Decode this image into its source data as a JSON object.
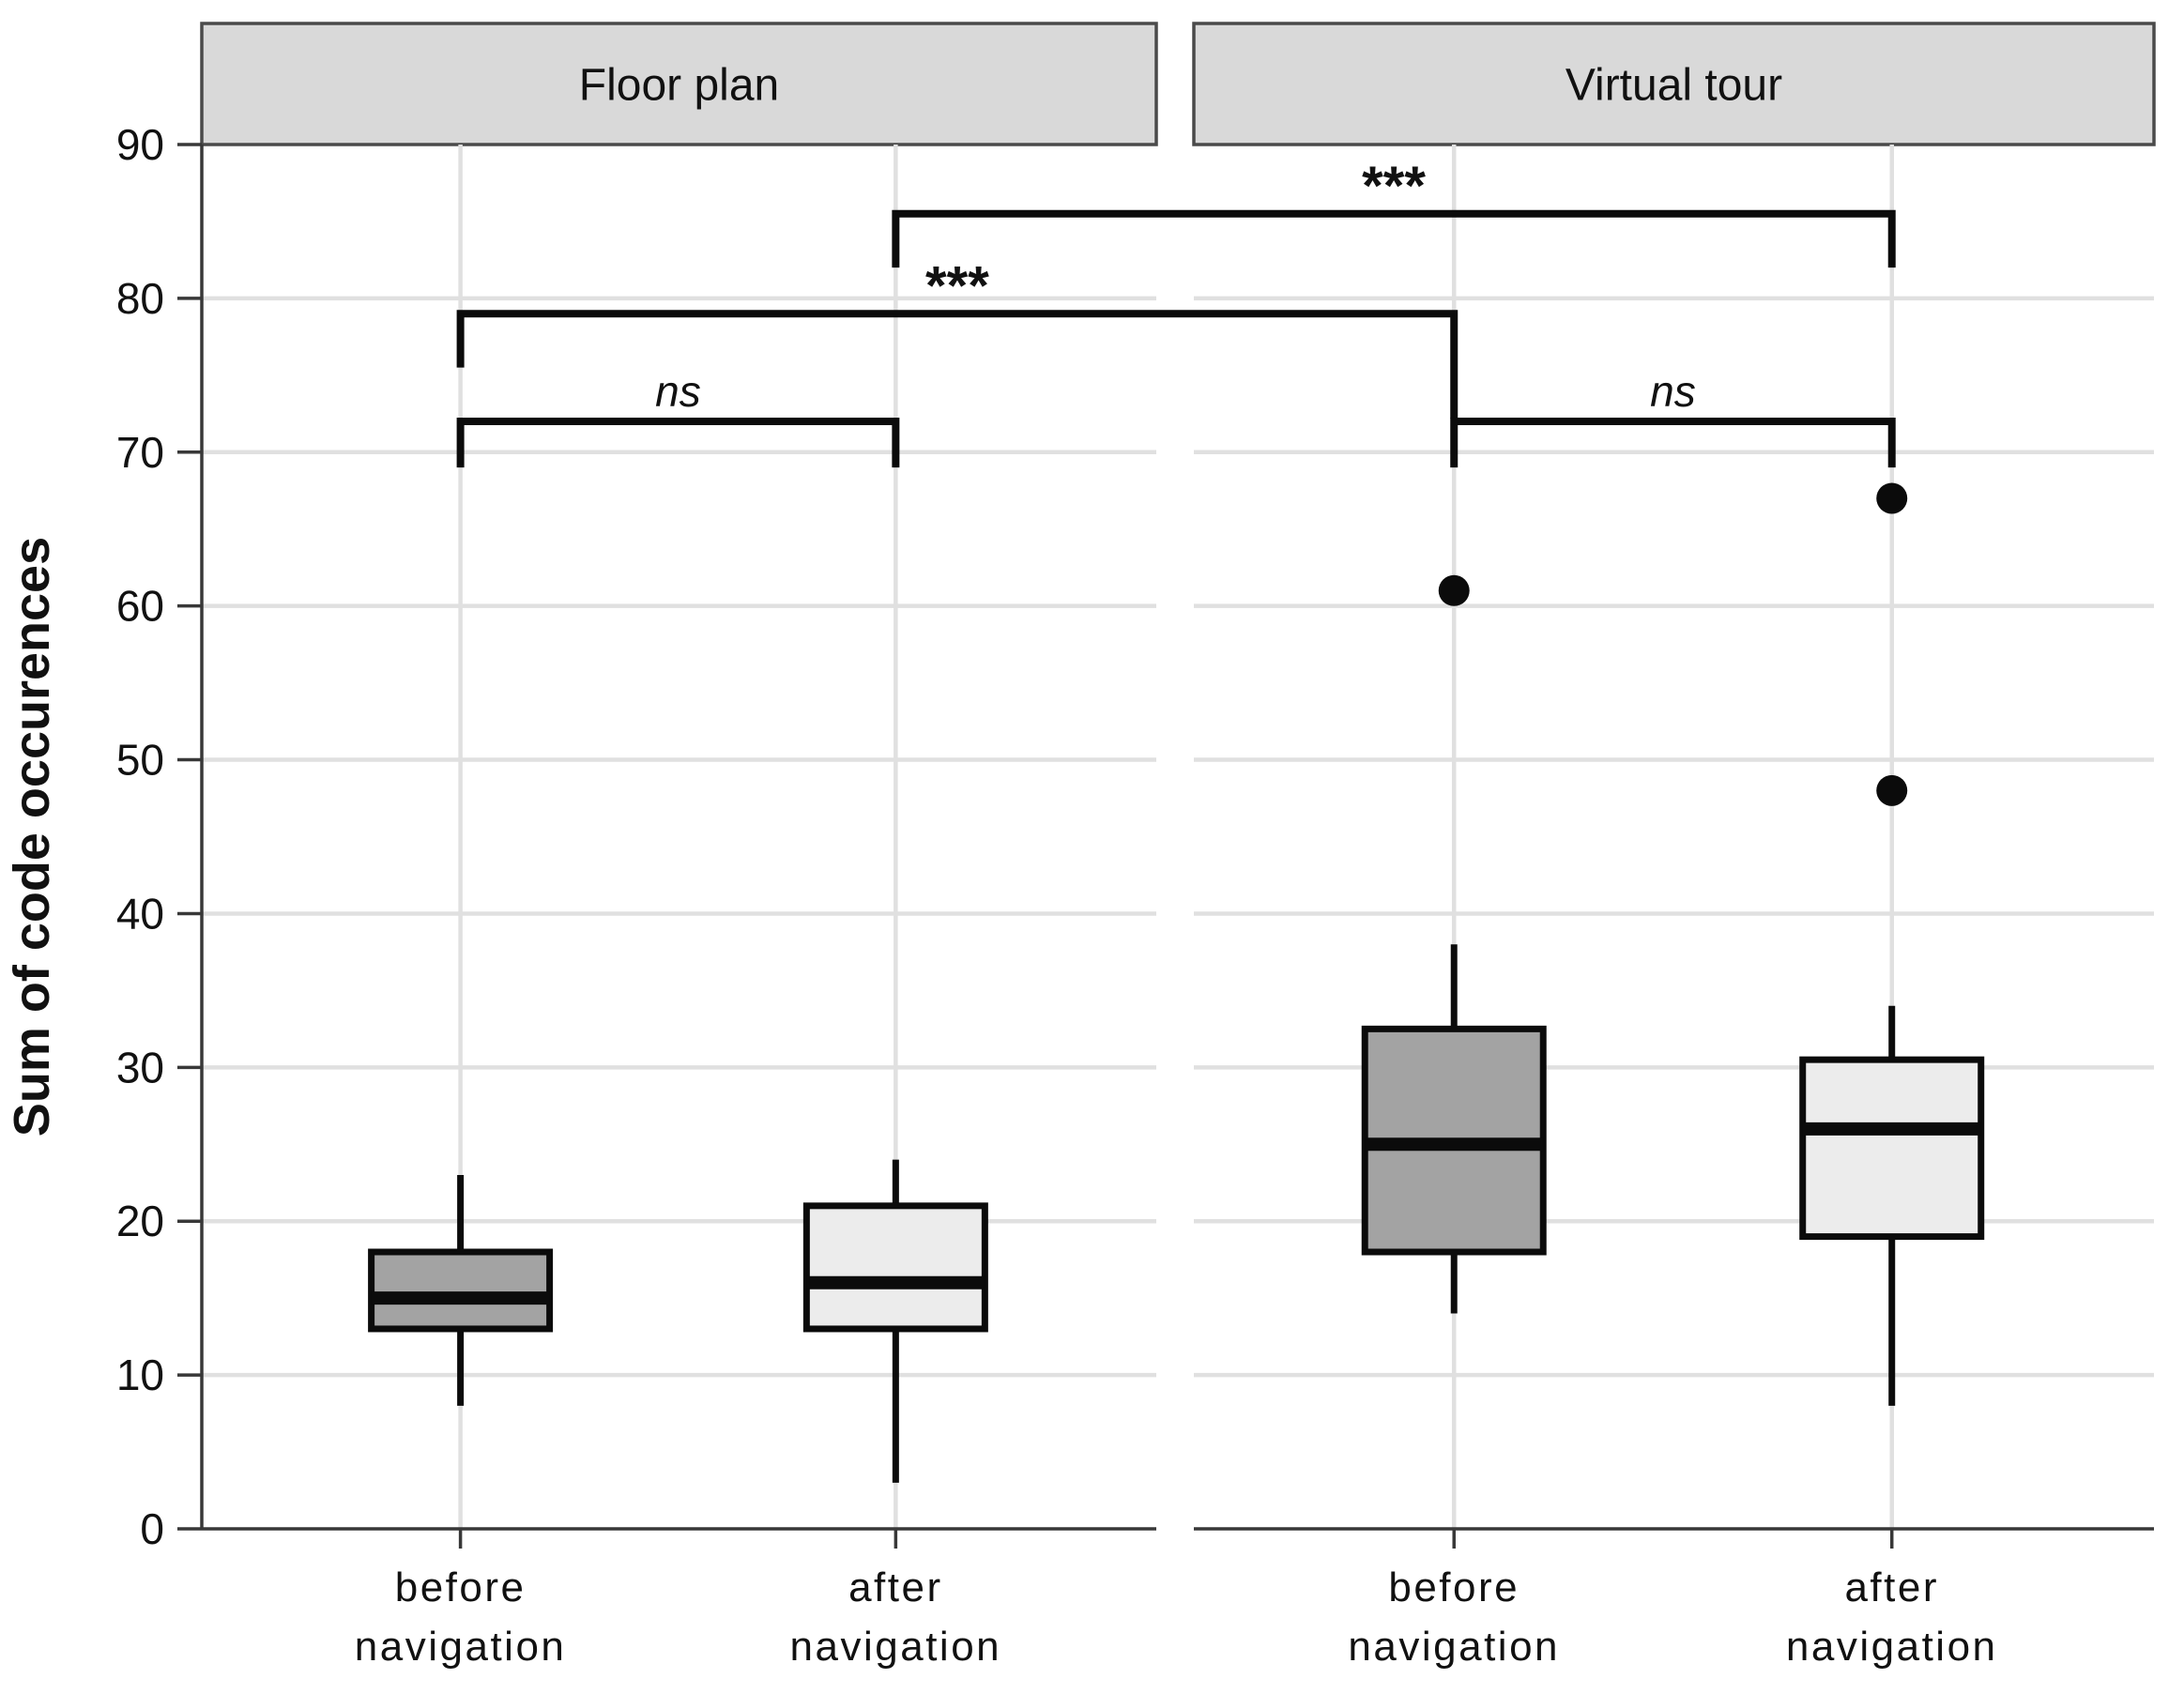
{
  "chart_data": {
    "type": "boxplot",
    "title": "",
    "ylabel": "Sum of code occurences",
    "xlabel": "",
    "ylim": [
      0,
      90
    ],
    "yticks": [
      0,
      10,
      20,
      30,
      40,
      50,
      60,
      70,
      80,
      90
    ],
    "grid": "light gray horizontal gridlines at each y tick and vertical gridline at each category",
    "legend": "none",
    "facets": [
      {
        "label": "Floor plan",
        "boxes": [
          {
            "category_lines": [
              "before",
              "navigation"
            ],
            "fill": "dark",
            "whisker_low": 8,
            "q1": 13,
            "median": 15,
            "q3": 18,
            "whisker_high": 23,
            "outliers": []
          },
          {
            "category_lines": [
              "after",
              "navigation"
            ],
            "fill": "light",
            "whisker_low": 3,
            "q1": 13,
            "median": 16,
            "q3": 21,
            "whisker_high": 24,
            "outliers": []
          }
        ]
      },
      {
        "label": "Virtual tour",
        "boxes": [
          {
            "category_lines": [
              "before",
              "navigation"
            ],
            "fill": "dark",
            "whisker_low": 14,
            "q1": 18,
            "median": 25,
            "q3": 32.5,
            "whisker_high": 38,
            "outliers": [
              61
            ]
          },
          {
            "category_lines": [
              "after",
              "navigation"
            ],
            "fill": "light",
            "whisker_low": 8,
            "q1": 19,
            "median": 26,
            "q3": 30.5,
            "whisker_high": 34,
            "outliers": [
              48,
              67
            ]
          }
        ]
      }
    ],
    "significance_brackets": [
      {
        "label": "***",
        "from": {
          "facet": 0,
          "box": 1
        },
        "to": {
          "facet": 1,
          "box": 1
        },
        "level": 85.5,
        "tick_to": 82,
        "tick_to_right": 82,
        "style": "stars"
      },
      {
        "label": "***",
        "from": {
          "facet": 0,
          "box": 0
        },
        "to": {
          "facet": 1,
          "box": 0
        },
        "level": 79,
        "tick_to": 75.5,
        "tick_to_right": 72.2,
        "style": "stars"
      },
      {
        "label": "ns",
        "from": {
          "facet": 0,
          "box": 0
        },
        "to": {
          "facet": 0,
          "box": 1
        },
        "level": 72,
        "tick_to": 69,
        "tick_to_right": 69,
        "style": "italic"
      },
      {
        "label": "ns",
        "from": {
          "facet": 1,
          "box": 0
        },
        "to": {
          "facet": 1,
          "box": 1
        },
        "level": 72,
        "tick_to": 69,
        "tick_to_right": 69,
        "style": "italic"
      }
    ],
    "colors": {
      "box_dark": "#a3a3a3",
      "box_light": "#ececec",
      "box_stroke": "#0b0b0b",
      "strip_fill": "#d9d9d9",
      "strip_border": "#4a4a4a",
      "grid": "#e0e0e0",
      "axis": "#383838",
      "ink": "#111111",
      "background": "#ffffff"
    }
  }
}
